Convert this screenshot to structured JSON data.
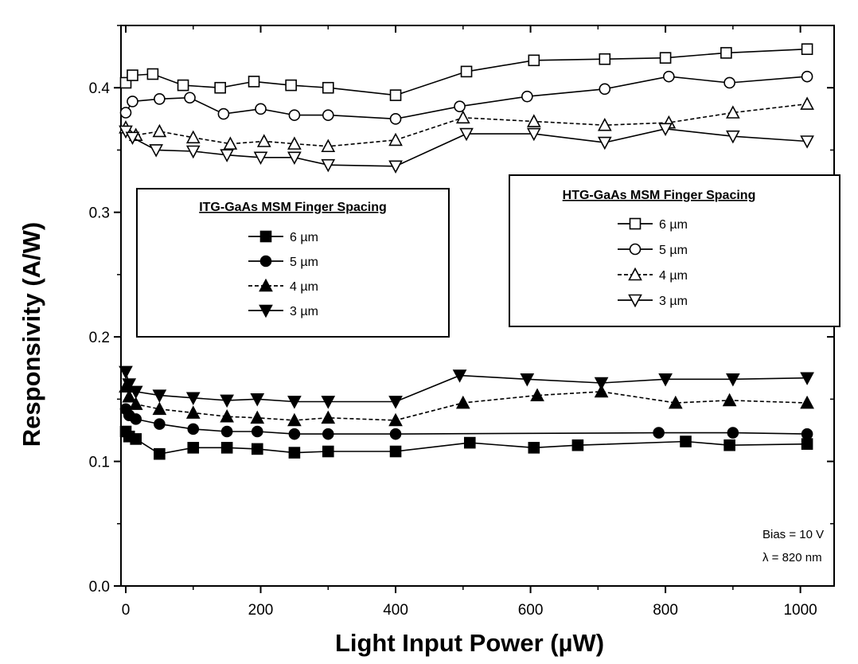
{
  "chart_data": {
    "type": "line",
    "xlabel": "Light Input Power (µW)",
    "ylabel": "Responsivity (A/W)",
    "xlim": [
      0,
      1050
    ],
    "ylim": [
      0.0,
      0.45
    ],
    "x_ticks": [
      "0",
      "200",
      "400",
      "600",
      "800",
      "1000"
    ],
    "y_ticks": [
      "0.0",
      "0.1",
      "0.2",
      "0.3",
      "0.4"
    ],
    "grid": false,
    "legends": [
      {
        "title": "ITG-GaAs MSM Finger Spacing",
        "placement": "left-center",
        "entries": [
          "6 µm",
          "5 µm",
          "4 µm",
          "3 µm"
        ]
      },
      {
        "title": "HTG-GaAs MSM Finger Spacing",
        "placement": "right-center",
        "entries": [
          "6 µm",
          "5 µm",
          "4 µm",
          "3 µm"
        ]
      }
    ],
    "annotations": [
      "Bias = 10 V",
      "λ = 820 nm"
    ],
    "series": [
      {
        "name": "ITG-GaAs 6 µm",
        "marker": "square",
        "filled": true,
        "dashed": false,
        "points": [
          [
            0,
            0.124
          ],
          [
            5,
            0.12
          ],
          [
            15,
            0.118
          ],
          [
            50,
            0.106
          ],
          [
            100,
            0.111
          ],
          [
            150,
            0.111
          ],
          [
            195,
            0.11
          ],
          [
            250,
            0.107
          ],
          [
            300,
            0.108
          ],
          [
            400,
            0.108
          ],
          [
            510,
            0.115
          ],
          [
            605,
            0.111
          ],
          [
            670,
            0.113
          ],
          [
            830,
            0.116
          ],
          [
            895,
            0.113
          ],
          [
            1010,
            0.114
          ]
        ]
      },
      {
        "name": "ITG-GaAs 5 µm",
        "marker": "circle",
        "filled": true,
        "dashed": false,
        "points": [
          [
            0,
            0.142
          ],
          [
            5,
            0.137
          ],
          [
            15,
            0.134
          ],
          [
            50,
            0.13
          ],
          [
            100,
            0.126
          ],
          [
            150,
            0.124
          ],
          [
            195,
            0.124
          ],
          [
            250,
            0.122
          ],
          [
            300,
            0.122
          ],
          [
            400,
            0.122
          ],
          [
            790,
            0.123
          ],
          [
            900,
            0.123
          ],
          [
            1010,
            0.122
          ]
        ]
      },
      {
        "name": "ITG-GaAs 4 µm",
        "marker": "triangle-up",
        "filled": true,
        "dashed": true,
        "points": [
          [
            0,
            0.16
          ],
          [
            5,
            0.152
          ],
          [
            15,
            0.146
          ],
          [
            50,
            0.142
          ],
          [
            100,
            0.139
          ],
          [
            150,
            0.136
          ],
          [
            195,
            0.135
          ],
          [
            250,
            0.133
          ],
          [
            300,
            0.135
          ],
          [
            400,
            0.133
          ],
          [
            500,
            0.147
          ],
          [
            610,
            0.153
          ],
          [
            705,
            0.156
          ],
          [
            815,
            0.147
          ],
          [
            895,
            0.149
          ],
          [
            1010,
            0.147
          ]
        ]
      },
      {
        "name": "ITG-GaAs 3 µm",
        "marker": "triangle-down",
        "filled": true,
        "dashed": false,
        "points": [
          [
            0,
            0.172
          ],
          [
            5,
            0.162
          ],
          [
            15,
            0.156
          ],
          [
            50,
            0.153
          ],
          [
            100,
            0.151
          ],
          [
            150,
            0.149
          ],
          [
            195,
            0.15
          ],
          [
            250,
            0.148
          ],
          [
            300,
            0.148
          ],
          [
            400,
            0.148
          ],
          [
            495,
            0.169
          ],
          [
            595,
            0.166
          ],
          [
            705,
            0.163
          ],
          [
            800,
            0.166
          ],
          [
            900,
            0.166
          ],
          [
            1010,
            0.167
          ]
        ]
      },
      {
        "name": "HTG-GaAs 6 µm",
        "marker": "square",
        "filled": false,
        "dashed": false,
        "points": [
          [
            0,
            0.404
          ],
          [
            10,
            0.41
          ],
          [
            40,
            0.411
          ],
          [
            85,
            0.402
          ],
          [
            140,
            0.4
          ],
          [
            190,
            0.405
          ],
          [
            245,
            0.402
          ],
          [
            300,
            0.4
          ],
          [
            400,
            0.394
          ],
          [
            505,
            0.413
          ],
          [
            605,
            0.422
          ],
          [
            710,
            0.423
          ],
          [
            800,
            0.424
          ],
          [
            890,
            0.428
          ],
          [
            1010,
            0.431
          ]
        ]
      },
      {
        "name": "HTG-GaAs 5 µm",
        "marker": "circle",
        "filled": false,
        "dashed": false,
        "points": [
          [
            0,
            0.38
          ],
          [
            10,
            0.389
          ],
          [
            50,
            0.391
          ],
          [
            95,
            0.392
          ],
          [
            145,
            0.379
          ],
          [
            200,
            0.383
          ],
          [
            250,
            0.378
          ],
          [
            300,
            0.378
          ],
          [
            400,
            0.375
          ],
          [
            495,
            0.385
          ],
          [
            595,
            0.393
          ],
          [
            710,
            0.399
          ],
          [
            805,
            0.409
          ],
          [
            895,
            0.404
          ],
          [
            1010,
            0.409
          ]
        ]
      },
      {
        "name": "HTG-GaAs 4 µm",
        "marker": "triangle-up",
        "filled": false,
        "dashed": true,
        "points": [
          [
            0,
            0.368
          ],
          [
            15,
            0.362
          ],
          [
            50,
            0.365
          ],
          [
            100,
            0.36
          ],
          [
            155,
            0.355
          ],
          [
            205,
            0.357
          ],
          [
            250,
            0.355
          ],
          [
            300,
            0.353
          ],
          [
            400,
            0.358
          ],
          [
            500,
            0.376
          ],
          [
            605,
            0.373
          ],
          [
            710,
            0.37
          ],
          [
            805,
            0.372
          ],
          [
            900,
            0.38
          ],
          [
            1010,
            0.387
          ]
        ]
      },
      {
        "name": "HTG-GaAs 3 µm",
        "marker": "triangle-down",
        "filled": false,
        "dashed": false,
        "points": [
          [
            0,
            0.365
          ],
          [
            10,
            0.36
          ],
          [
            45,
            0.35
          ],
          [
            100,
            0.349
          ],
          [
            150,
            0.346
          ],
          [
            200,
            0.344
          ],
          [
            250,
            0.344
          ],
          [
            300,
            0.338
          ],
          [
            400,
            0.337
          ],
          [
            505,
            0.363
          ],
          [
            605,
            0.363
          ],
          [
            710,
            0.356
          ],
          [
            800,
            0.367
          ],
          [
            900,
            0.361
          ],
          [
            1010,
            0.357
          ]
        ]
      }
    ]
  }
}
